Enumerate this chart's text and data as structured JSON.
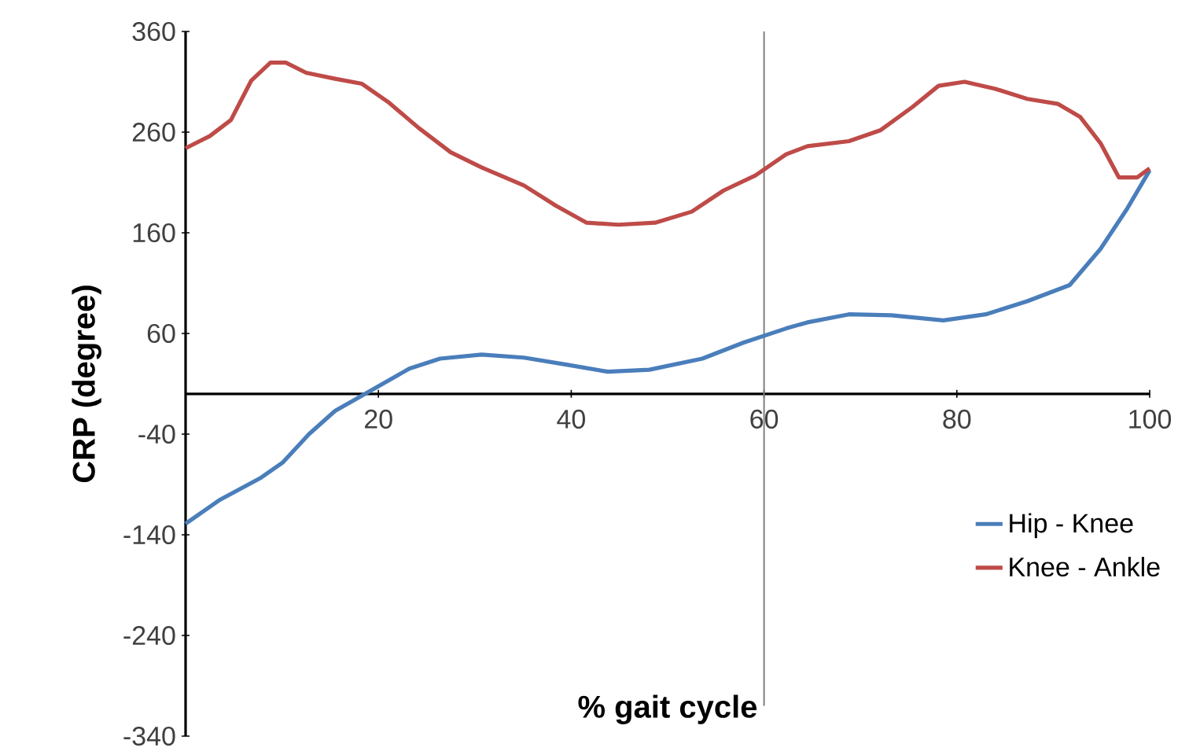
{
  "chart_data": {
    "type": "line",
    "xlabel": "% gait cycle",
    "ylabel": "CRP (degree)",
    "xlim": [
      0,
      100
    ],
    "xticks": [
      20,
      40,
      60,
      80,
      100
    ],
    "ylim": [
      -340,
      360
    ],
    "yticks": [
      -340,
      -240,
      -140,
      -40,
      60,
      160,
      260,
      360
    ],
    "grid": false,
    "legend": "right",
    "marker": "none",
    "line_style": "solid",
    "ref_lines": [
      {
        "axis": "x",
        "value": 60,
        "color": "#808080"
      }
    ],
    "series": [
      {
        "name": "Hip - Knee",
        "color": "#4a7ebb",
        "x": [
          0,
          3.6,
          7.7,
          10.1,
          12.8,
          15.5,
          18.8,
          23.2,
          26.4,
          30.7,
          35.1,
          39.5,
          43.8,
          48.1,
          53.6,
          57.9,
          62.3,
          64.5,
          68.8,
          73.2,
          78.6,
          83,
          87.3,
          91.7,
          94.9,
          97.6,
          100
        ],
        "values": [
          -129,
          -105,
          -84,
          -68,
          -40,
          -17,
          1,
          25,
          35,
          39,
          36,
          29,
          22,
          24,
          35,
          51,
          65,
          71,
          79,
          78,
          73,
          79,
          92,
          108,
          144,
          183,
          222
        ]
      },
      {
        "name": "Knee - Ankle",
        "color": "#be4b48",
        "x": [
          0,
          2.5,
          4.7,
          6.8,
          8.8,
          10.4,
          12.5,
          15.5,
          18.3,
          21,
          24.2,
          27.5,
          30.7,
          35.1,
          38.4,
          41.6,
          44.9,
          48.7,
          52.5,
          55.8,
          59.1,
          62.3,
          64.5,
          68.8,
          72.1,
          75.4,
          78.1,
          80.8,
          84,
          87.3,
          90.5,
          92.8,
          94.9,
          96.8,
          98.7,
          100
        ],
        "values": [
          244,
          256,
          272,
          311,
          329,
          329,
          319,
          313,
          308,
          290,
          264,
          240,
          225,
          207,
          187,
          170,
          168,
          170,
          181,
          202,
          217,
          238,
          246,
          251,
          262,
          285,
          306,
          310,
          303,
          293,
          288,
          275,
          249,
          215,
          215,
          224
        ]
      }
    ]
  }
}
